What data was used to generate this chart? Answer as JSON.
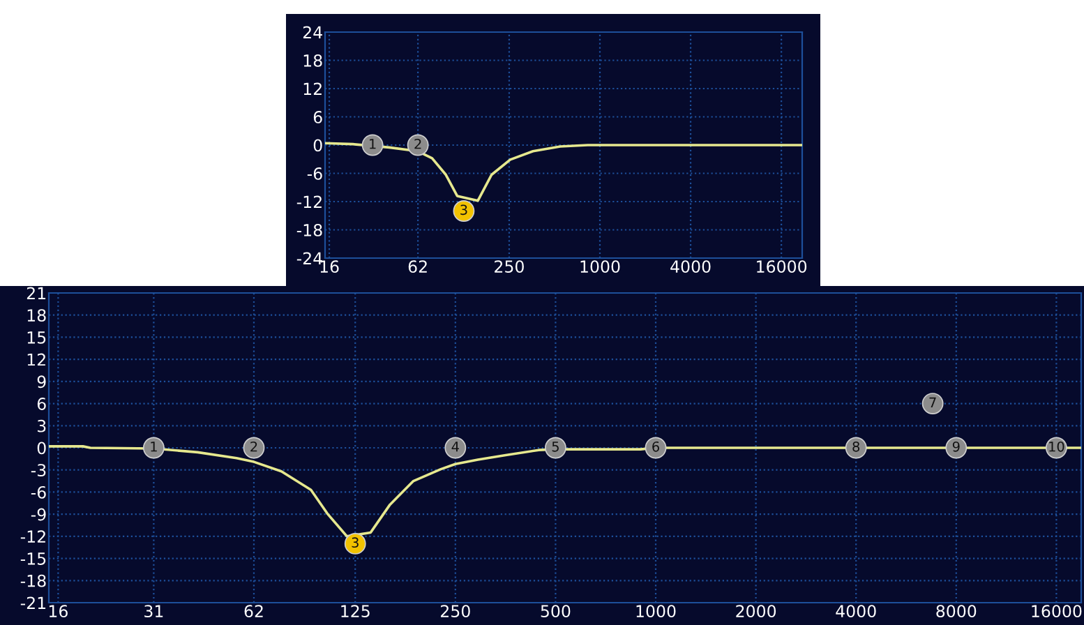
{
  "chart_data": [
    {
      "type": "line",
      "log": "x",
      "xlim": [
        15,
        22000
      ],
      "ylim": [
        -24,
        24
      ],
      "xticks": [
        16,
        62,
        250,
        1000,
        4000,
        16000
      ],
      "yticks": [
        -24,
        -18,
        -12,
        -6,
        0,
        6,
        12,
        18,
        24
      ],
      "grid": true,
      "series": [
        {
          "color": "#e6e88e",
          "x": [
            15,
            23,
            40,
            62,
            77,
            95,
            113,
            155,
            191,
            254,
            360,
            545,
            830,
            22000
          ],
          "values": [
            0.4,
            0.2,
            -0.5,
            -1.3,
            -2.8,
            -6.3,
            -10.8,
            -11.8,
            -6.3,
            -3.1,
            -1.3,
            -0.3,
            0,
            0
          ]
        },
        {
          "type": "scatter",
          "marker": "circle",
          "x": [
            31,
            62,
            125
          ],
          "values": [
            0,
            0,
            -14
          ],
          "colors": [
            "#8c8c8c",
            "#8c8c8c",
            "#f2c200"
          ]
        }
      ],
      "annotations": [
        {
          "text": "1",
          "x": 31,
          "y": 0
        },
        {
          "text": "2",
          "x": 62,
          "y": 0
        },
        {
          "text": "3",
          "x": 125,
          "y": -14
        }
      ]
    },
    {
      "type": "line",
      "log": "x",
      "xlim": [
        15,
        19000
      ],
      "ylim": [
        -21,
        21
      ],
      "xticks": [
        16,
        31,
        62,
        125,
        250,
        500,
        1000,
        2000,
        4000,
        8000,
        16000
      ],
      "yticks": [
        -21,
        -18,
        -15,
        -12,
        -9,
        -6,
        -3,
        0,
        3,
        6,
        9,
        12,
        15,
        18,
        21
      ],
      "grid": true,
      "series": [
        {
          "color": "#e6e88e",
          "x": [
            15,
            19,
            20,
            31,
            42,
            55,
            62,
            75,
            92,
            103,
            118,
            139,
            159,
            187,
            226,
            250,
            292,
            354,
            445,
            500,
            900,
            1000,
            19000
          ],
          "values": [
            0.2,
            0.2,
            0,
            -0.1,
            -0.6,
            -1.4,
            -1.9,
            -3.2,
            -5.7,
            -8.9,
            -12,
            -11.5,
            -7.7,
            -4.5,
            -2.9,
            -2.2,
            -1.6,
            -1,
            -0.3,
            -0.2,
            -0.2,
            0,
            0
          ]
        },
        {
          "type": "scatter",
          "marker": "circle",
          "x": [
            31,
            62,
            125,
            250,
            500,
            1000,
            6800,
            4000,
            8000,
            16000
          ],
          "values": [
            0,
            0,
            -13,
            0,
            0,
            0,
            6,
            0,
            0,
            0
          ],
          "colors": [
            "#8c8c8c",
            "#8c8c8c",
            "#f2c200",
            "#8c8c8c",
            "#8c8c8c",
            "#8c8c8c",
            "#8c8c8c",
            "#8c8c8c",
            "#8c8c8c",
            "#8c8c8c"
          ]
        }
      ],
      "annotations": [
        {
          "text": "1",
          "x": 31,
          "y": 0
        },
        {
          "text": "2",
          "x": 62,
          "y": 0
        },
        {
          "text": "3",
          "x": 125,
          "y": -13
        },
        {
          "text": "4",
          "x": 250,
          "y": 0
        },
        {
          "text": "5",
          "x": 500,
          "y": 0
        },
        {
          "text": "6",
          "x": 1000,
          "y": 0
        },
        {
          "text": "7",
          "x": 6800,
          "y": 6
        },
        {
          "text": "8",
          "x": 4000,
          "y": 0
        },
        {
          "text": "9",
          "x": 8000,
          "y": 0
        },
        {
          "text": "10",
          "x": 16000,
          "y": 0
        }
      ]
    }
  ]
}
